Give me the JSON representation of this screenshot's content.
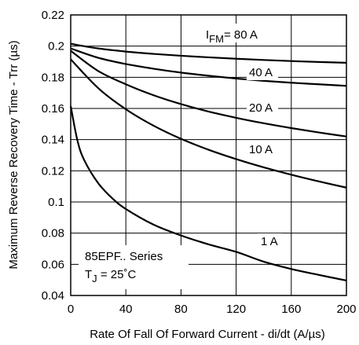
{
  "chart_data": {
    "type": "line",
    "xlabel": "Rate Of Fall Of Forward Current - di/dt (A/µs)",
    "ylabel": "Maximum Reverse Recovery Time - Trr (µs)",
    "xlim": [
      0,
      200
    ],
    "ylim": [
      0.04,
      0.22
    ],
    "x_ticks": [
      "0",
      "40",
      "80",
      "120",
      "160",
      "200"
    ],
    "y_ticks": [
      "0.04",
      "0.06",
      "0.08",
      "0.1",
      "0.12",
      "0.14",
      "0.16",
      "0.18",
      "0.2",
      "0.22"
    ],
    "grid": true,
    "series": [
      {
        "name": "I FM = 80 A",
        "x": [
          0,
          20,
          40,
          60,
          80,
          100,
          120,
          140,
          160,
          180,
          200
        ],
        "y": [
          0.2015,
          0.1985,
          0.1965,
          0.195,
          0.1938,
          0.1928,
          0.1919,
          0.1911,
          0.1904,
          0.1898,
          0.1893
        ]
      },
      {
        "name": "40 A",
        "x": [
          0,
          20,
          40,
          60,
          80,
          100,
          120,
          140,
          160,
          180,
          200
        ],
        "y": [
          0.1985,
          0.1925,
          0.1885,
          0.1855,
          0.183,
          0.181,
          0.1792,
          0.1777,
          0.1765,
          0.1755,
          0.1745
        ]
      },
      {
        "name": "20 A",
        "x": [
          0,
          20,
          40,
          60,
          80,
          100,
          120,
          140,
          160,
          180,
          200
        ],
        "y": [
          0.197,
          0.184,
          0.1755,
          0.1685,
          0.1628,
          0.158,
          0.154,
          0.1505,
          0.1474,
          0.1446,
          0.142
        ]
      },
      {
        "name": "10 A",
        "x": [
          0,
          20,
          40,
          60,
          80,
          100,
          120,
          140,
          160,
          180,
          200
        ],
        "y": [
          0.1915,
          0.173,
          0.1595,
          0.149,
          0.1405,
          0.1335,
          0.1275,
          0.1222,
          0.1175,
          0.1132,
          0.1092
        ]
      },
      {
        "name": "1 A",
        "x": [
          0,
          5,
          10,
          20,
          30,
          40,
          60,
          80,
          100,
          120,
          140,
          160,
          180,
          200
        ],
        "y": [
          0.1615,
          0.139,
          0.1265,
          0.112,
          0.1025,
          0.0955,
          0.0855,
          0.0785,
          0.0728,
          0.068,
          0.0617,
          0.057,
          0.0532,
          0.0496
        ]
      }
    ],
    "labels": {
      "ifm_main": "I",
      "ifm_sub": "FM",
      "ifm_rest": "= 80 A",
      "a40": "40 A",
      "a20": "20 A",
      "a10": "10 A",
      "a1": "1 A",
      "series_name": "85EPF.. Series",
      "tj_main": "T",
      "tj_sub": "J",
      "tj_rest": " = 25˚C"
    }
  }
}
